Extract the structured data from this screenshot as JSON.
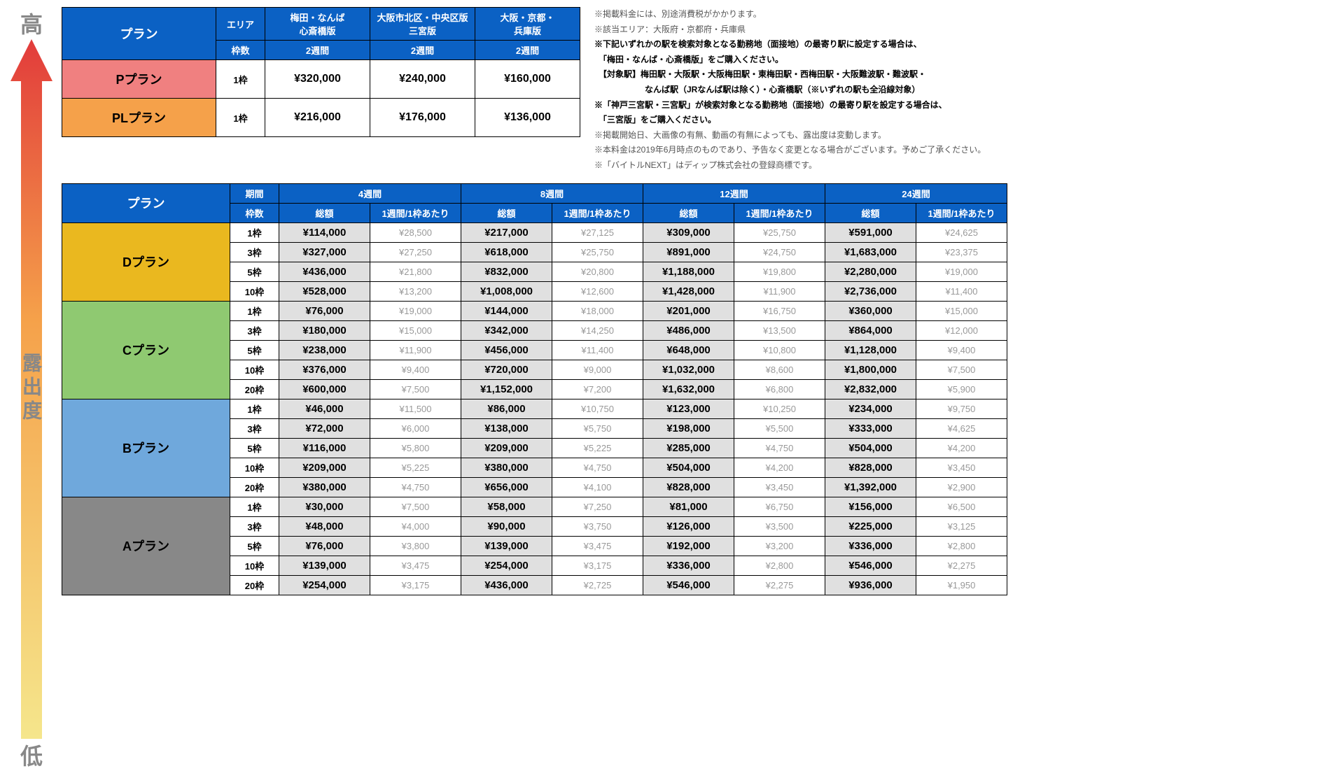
{
  "colors": {
    "header_bg": "#0b61c4",
    "p_plan_bg": "#f08080",
    "pl_plan_bg": "#f5a14a",
    "d_plan_bg": "#eab81f",
    "c_plan_bg": "#8fc971",
    "b_plan_bg": "#6fa8dc",
    "a_plan_bg": "#888888",
    "total_bg": "#e0e0e0",
    "gradient_top": "#e23b3b",
    "gradient_mid": "#f5a14a",
    "gradient_bot": "#f5e68c"
  },
  "arrow": {
    "top": "高",
    "mid": "露出度",
    "bottom": "低"
  },
  "table1": {
    "plan_hdr": "プラン",
    "area_hdr": "エリア",
    "slot_hdr": "枠数",
    "areas": [
      "梅田・なんば\n心斎橋版",
      "大阪市北区・中央区版\n三宮版",
      "大阪・京都・\n兵庫版"
    ],
    "period": "2週間",
    "rows": [
      {
        "name": "Pプラン",
        "bg": "#f08080",
        "slot": "1枠",
        "prices": [
          "¥320,000",
          "¥240,000",
          "¥160,000"
        ]
      },
      {
        "name": "PLプラン",
        "bg": "#f5a14a",
        "slot": "1枠",
        "prices": [
          "¥216,000",
          "¥176,000",
          "¥136,000"
        ]
      }
    ]
  },
  "notes": [
    {
      "t": "※掲載料金には、別途消費税がかかります。",
      "b": false
    },
    {
      "t": "※該当エリア：大阪府・京都府・兵庫県",
      "b": false
    },
    {
      "t": "※下記いずれかの駅を検索対象となる勤務地（面接地）の最寄り駅に設定する場合は、",
      "b": true
    },
    {
      "t": "　「梅田・なんば・心斎橋版」をご購入ください。",
      "b": true
    },
    {
      "t": "　【対象駅】梅田駅・大阪駅・大阪梅田駅・東梅田駅・西梅田駅・大阪難波駅・難波駅・",
      "b": true
    },
    {
      "t": "　　　　　　なんば駅（JRなんば駅は除く）・心斎橋駅（※いずれの駅も全沿線対象）",
      "b": true
    },
    {
      "t": "※「神戸三宮駅・三宮駅」が検索対象となる勤務地（面接地）の最寄り駅を設定する場合は、",
      "b": true
    },
    {
      "t": "　「三宮版」をご購入ください。",
      "b": true
    },
    {
      "t": "※掲載開始日、大画像の有無、動画の有無によっても、露出度は変動します。",
      "b": false
    },
    {
      "t": "※本料金は2019年6月時点のものであり、予告なく変更となる場合がございます。予めご了承ください。",
      "b": false
    },
    {
      "t": "※「バイトルNEXT」はディップ株式会社の登録商標です。",
      "b": false
    }
  ],
  "table2": {
    "plan_hdr": "プラン",
    "period_hdr": "期間",
    "slot_hdr": "枠数",
    "total_hdr": "総額",
    "perweek_hdr": "1週間/1枠あたり",
    "periods": [
      "4週間",
      "8週間",
      "12週間",
      "24週間"
    ],
    "plans": [
      {
        "name": "Dプラン",
        "bg": "#eab81f",
        "rows": [
          {
            "slot": "1枠",
            "vals": [
              [
                "¥114,000",
                "¥28,500"
              ],
              [
                "¥217,000",
                "¥27,125"
              ],
              [
                "¥309,000",
                "¥25,750"
              ],
              [
                "¥591,000",
                "¥24,625"
              ]
            ]
          },
          {
            "slot": "3枠",
            "vals": [
              [
                "¥327,000",
                "¥27,250"
              ],
              [
                "¥618,000",
                "¥25,750"
              ],
              [
                "¥891,000",
                "¥24,750"
              ],
              [
                "¥1,683,000",
                "¥23,375"
              ]
            ]
          },
          {
            "slot": "5枠",
            "vals": [
              [
                "¥436,000",
                "¥21,800"
              ],
              [
                "¥832,000",
                "¥20,800"
              ],
              [
                "¥1,188,000",
                "¥19,800"
              ],
              [
                "¥2,280,000",
                "¥19,000"
              ]
            ]
          },
          {
            "slot": "10枠",
            "vals": [
              [
                "¥528,000",
                "¥13,200"
              ],
              [
                "¥1,008,000",
                "¥12,600"
              ],
              [
                "¥1,428,000",
                "¥11,900"
              ],
              [
                "¥2,736,000",
                "¥11,400"
              ]
            ]
          }
        ]
      },
      {
        "name": "Cプラン",
        "bg": "#8fc971",
        "rows": [
          {
            "slot": "1枠",
            "vals": [
              [
                "¥76,000",
                "¥19,000"
              ],
              [
                "¥144,000",
                "¥18,000"
              ],
              [
                "¥201,000",
                "¥16,750"
              ],
              [
                "¥360,000",
                "¥15,000"
              ]
            ]
          },
          {
            "slot": "3枠",
            "vals": [
              [
                "¥180,000",
                "¥15,000"
              ],
              [
                "¥342,000",
                "¥14,250"
              ],
              [
                "¥486,000",
                "¥13,500"
              ],
              [
                "¥864,000",
                "¥12,000"
              ]
            ]
          },
          {
            "slot": "5枠",
            "vals": [
              [
                "¥238,000",
                "¥11,900"
              ],
              [
                "¥456,000",
                "¥11,400"
              ],
              [
                "¥648,000",
                "¥10,800"
              ],
              [
                "¥1,128,000",
                "¥9,400"
              ]
            ]
          },
          {
            "slot": "10枠",
            "vals": [
              [
                "¥376,000",
                "¥9,400"
              ],
              [
                "¥720,000",
                "¥9,000"
              ],
              [
                "¥1,032,000",
                "¥8,600"
              ],
              [
                "¥1,800,000",
                "¥7,500"
              ]
            ]
          },
          {
            "slot": "20枠",
            "vals": [
              [
                "¥600,000",
                "¥7,500"
              ],
              [
                "¥1,152,000",
                "¥7,200"
              ],
              [
                "¥1,632,000",
                "¥6,800"
              ],
              [
                "¥2,832,000",
                "¥5,900"
              ]
            ]
          }
        ]
      },
      {
        "name": "Bプラン",
        "bg": "#6fa8dc",
        "rows": [
          {
            "slot": "1枠",
            "vals": [
              [
                "¥46,000",
                "¥11,500"
              ],
              [
                "¥86,000",
                "¥10,750"
              ],
              [
                "¥123,000",
                "¥10,250"
              ],
              [
                "¥234,000",
                "¥9,750"
              ]
            ]
          },
          {
            "slot": "3枠",
            "vals": [
              [
                "¥72,000",
                "¥6,000"
              ],
              [
                "¥138,000",
                "¥5,750"
              ],
              [
                "¥198,000",
                "¥5,500"
              ],
              [
                "¥333,000",
                "¥4,625"
              ]
            ]
          },
          {
            "slot": "5枠",
            "vals": [
              [
                "¥116,000",
                "¥5,800"
              ],
              [
                "¥209,000",
                "¥5,225"
              ],
              [
                "¥285,000",
                "¥4,750"
              ],
              [
                "¥504,000",
                "¥4,200"
              ]
            ]
          },
          {
            "slot": "10枠",
            "vals": [
              [
                "¥209,000",
                "¥5,225"
              ],
              [
                "¥380,000",
                "¥4,750"
              ],
              [
                "¥504,000",
                "¥4,200"
              ],
              [
                "¥828,000",
                "¥3,450"
              ]
            ]
          },
          {
            "slot": "20枠",
            "vals": [
              [
                "¥380,000",
                "¥4,750"
              ],
              [
                "¥656,000",
                "¥4,100"
              ],
              [
                "¥828,000",
                "¥3,450"
              ],
              [
                "¥1,392,000",
                "¥2,900"
              ]
            ]
          }
        ]
      },
      {
        "name": "Aプラン",
        "bg": "#888888",
        "rows": [
          {
            "slot": "1枠",
            "vals": [
              [
                "¥30,000",
                "¥7,500"
              ],
              [
                "¥58,000",
                "¥7,250"
              ],
              [
                "¥81,000",
                "¥6,750"
              ],
              [
                "¥156,000",
                "¥6,500"
              ]
            ]
          },
          {
            "slot": "3枠",
            "vals": [
              [
                "¥48,000",
                "¥4,000"
              ],
              [
                "¥90,000",
                "¥3,750"
              ],
              [
                "¥126,000",
                "¥3,500"
              ],
              [
                "¥225,000",
                "¥3,125"
              ]
            ]
          },
          {
            "slot": "5枠",
            "vals": [
              [
                "¥76,000",
                "¥3,800"
              ],
              [
                "¥139,000",
                "¥3,475"
              ],
              [
                "¥192,000",
                "¥3,200"
              ],
              [
                "¥336,000",
                "¥2,800"
              ]
            ]
          },
          {
            "slot": "10枠",
            "vals": [
              [
                "¥139,000",
                "¥3,475"
              ],
              [
                "¥254,000",
                "¥3,175"
              ],
              [
                "¥336,000",
                "¥2,800"
              ],
              [
                "¥546,000",
                "¥2,275"
              ]
            ]
          },
          {
            "slot": "20枠",
            "vals": [
              [
                "¥254,000",
                "¥3,175"
              ],
              [
                "¥436,000",
                "¥2,725"
              ],
              [
                "¥546,000",
                "¥2,275"
              ],
              [
                "¥936,000",
                "¥1,950"
              ]
            ]
          }
        ]
      }
    ]
  }
}
